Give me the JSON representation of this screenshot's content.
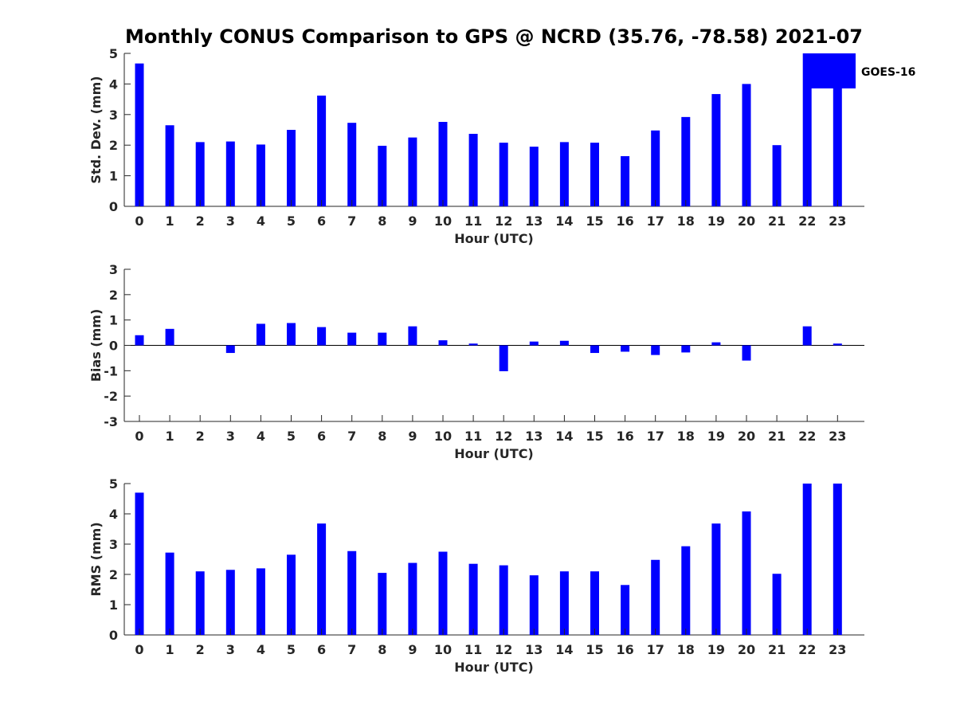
{
  "chart_data": {
    "title": "Monthly CONUS Comparison to GPS @ NCRD (35.76, -78.58) 2021-07",
    "bar_color": "#0000ff",
    "legend": {
      "label": "GOES-16",
      "placement": "top-right"
    },
    "panels": [
      {
        "type": "bar",
        "name": "std-dev",
        "ylabel": "Std. Dev. (mm)",
        "xlabel": "Hour (UTC)",
        "ylim": [
          0,
          5
        ],
        "yticks": [
          0,
          1,
          2,
          3,
          4,
          5
        ],
        "categories": [
          "0",
          "1",
          "2",
          "3",
          "4",
          "5",
          "6",
          "7",
          "8",
          "9",
          "10",
          "11",
          "12",
          "13",
          "14",
          "15",
          "16",
          "17",
          "18",
          "19",
          "20",
          "21",
          "22",
          "23"
        ],
        "values": [
          4.67,
          2.65,
          2.1,
          2.12,
          2.02,
          2.5,
          3.62,
          2.73,
          1.98,
          2.25,
          2.76,
          2.37,
          2.08,
          1.95,
          2.1,
          2.08,
          1.64,
          2.48,
          2.92,
          3.67,
          4.0,
          2.0,
          5.0,
          5.0
        ]
      },
      {
        "type": "bar",
        "name": "bias",
        "ylabel": "Bias (mm)",
        "xlabel": "Hour (UTC)",
        "ylim": [
          -3,
          3
        ],
        "yticks": [
          -3,
          -2,
          -1,
          0,
          1,
          2,
          3
        ],
        "baseline": 0,
        "categories": [
          "0",
          "1",
          "2",
          "3",
          "4",
          "5",
          "6",
          "7",
          "8",
          "9",
          "10",
          "11",
          "12",
          "13",
          "14",
          "15",
          "16",
          "17",
          "18",
          "19",
          "20",
          "21",
          "22",
          "23"
        ],
        "values": [
          0.4,
          0.65,
          0,
          -0.3,
          0.85,
          0.88,
          0.72,
          0.5,
          0.5,
          0.75,
          0.2,
          0.07,
          -1.02,
          0.15,
          0.18,
          -0.3,
          -0.25,
          -0.38,
          -0.28,
          0.12,
          -0.6,
          0,
          0.75,
          0.07
        ]
      },
      {
        "type": "bar",
        "name": "rms",
        "ylabel": "RMS (mm)",
        "xlabel": "Hour (UTC)",
        "ylim": [
          0,
          5
        ],
        "yticks": [
          0,
          1,
          2,
          3,
          4,
          5
        ],
        "categories": [
          "0",
          "1",
          "2",
          "3",
          "4",
          "5",
          "6",
          "7",
          "8",
          "9",
          "10",
          "11",
          "12",
          "13",
          "14",
          "15",
          "16",
          "17",
          "18",
          "19",
          "20",
          "21",
          "22",
          "23"
        ],
        "values": [
          4.7,
          2.72,
          2.1,
          2.15,
          2.2,
          2.65,
          3.68,
          2.77,
          2.05,
          2.38,
          2.75,
          2.35,
          2.3,
          1.97,
          2.1,
          2.1,
          1.65,
          2.48,
          2.93,
          3.68,
          4.08,
          2.02,
          5.0,
          5.0
        ]
      }
    ]
  }
}
